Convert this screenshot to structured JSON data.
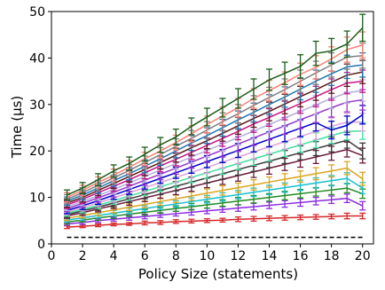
{
  "chart_data": {
    "type": "line",
    "xlabel": "Policy Size (statements)",
    "ylabel": "Time (μs)",
    "xlim": [
      0,
      20.7
    ],
    "ylim": [
      0,
      50
    ],
    "x_ticks": [
      0,
      2,
      4,
      6,
      8,
      10,
      12,
      14,
      16,
      18,
      20
    ],
    "y_ticks": [
      0,
      10,
      20,
      30,
      40,
      50
    ],
    "x": [
      1,
      2,
      3,
      4,
      5,
      6,
      7,
      8,
      9,
      10,
      11,
      12,
      13,
      14,
      15,
      16,
      17,
      18,
      19,
      20
    ],
    "error_bars": true,
    "grid": false,
    "legend": "none",
    "series": [
      {
        "color": "#1a5e1a",
        "values": [
          10.5,
          12.0,
          13.8,
          15.7,
          17.3,
          19.3,
          21.3,
          23.0,
          25.3,
          27.3,
          29.3,
          31.3,
          33.3,
          35.3,
          36.7,
          38.2,
          41.0,
          41.5,
          43.0,
          46.5
        ],
        "errors": [
          1.1,
          1.2,
          1.3,
          1.3,
          1.4,
          1.5,
          1.6,
          1.7,
          1.8,
          1.9,
          2.0,
          2.1,
          2.2,
          2.3,
          2.4,
          2.5,
          2.6,
          2.7,
          2.8,
          2.9
        ]
      },
      {
        "color": "#fa8072",
        "values": [
          10.0,
          11.5,
          13.2,
          14.8,
          16.5,
          18.3,
          20.0,
          21.8,
          23.7,
          25.7,
          27.5,
          29.3,
          31.3,
          33.0,
          34.7,
          36.5,
          38.0,
          39.8,
          41.8,
          42.8
        ],
        "errors": [
          1.0,
          1.1,
          1.2,
          1.3,
          1.4,
          1.4,
          1.5,
          1.6,
          1.7,
          1.8,
          1.9,
          2.0,
          2.1,
          2.2,
          2.3,
          2.4,
          2.5,
          2.6,
          2.7,
          2.8
        ]
      },
      {
        "color": "#808080",
        "values": [
          9.6,
          11.0,
          12.6,
          14.2,
          15.8,
          17.5,
          19.2,
          21.0,
          22.7,
          24.5,
          26.3,
          28.0,
          29.8,
          31.5,
          33.2,
          35.0,
          36.8,
          38.5,
          40.2,
          40.5
        ],
        "errors": [
          1.0,
          1.1,
          1.1,
          1.2,
          1.3,
          1.4,
          1.5,
          1.6,
          1.7,
          1.8,
          1.9,
          2.0,
          2.1,
          2.2,
          2.3,
          2.4,
          2.5,
          2.6,
          2.6,
          2.7
        ]
      },
      {
        "color": "#1f77b4",
        "values": [
          9.2,
          10.5,
          12.0,
          13.6,
          15.1,
          16.7,
          18.3,
          20.0,
          21.7,
          23.3,
          25.0,
          26.7,
          28.3,
          30.0,
          31.6,
          33.3,
          35.0,
          36.6,
          38.1,
          38.5
        ],
        "errors": [
          0.9,
          1.0,
          1.1,
          1.2,
          1.3,
          1.4,
          1.4,
          1.5,
          1.6,
          1.7,
          1.8,
          1.9,
          2.0,
          2.1,
          2.2,
          2.3,
          2.4,
          2.5,
          2.5,
          2.6
        ]
      },
      {
        "color": "#5c1a1a",
        "values": [
          8.8,
          10.0,
          11.5,
          13.0,
          14.5,
          16.0,
          17.5,
          19.1,
          20.7,
          22.2,
          23.8,
          25.4,
          27.0,
          28.5,
          30.1,
          31.7,
          33.2,
          34.8,
          36.3,
          37.0
        ],
        "errors": [
          0.9,
          1.0,
          1.1,
          1.1,
          1.2,
          1.3,
          1.4,
          1.5,
          1.6,
          1.7,
          1.7,
          1.8,
          1.9,
          2.0,
          2.1,
          2.2,
          2.3,
          2.4,
          2.4,
          2.5
        ]
      },
      {
        "color": "#c71585",
        "values": [
          8.4,
          9.6,
          11.0,
          12.4,
          13.8,
          15.3,
          16.8,
          18.2,
          19.7,
          21.2,
          22.7,
          24.2,
          25.8,
          27.2,
          28.7,
          30.2,
          31.7,
          33.2,
          34.6,
          35.0
        ],
        "errors": [
          0.8,
          0.9,
          1.0,
          1.1,
          1.2,
          1.3,
          1.3,
          1.4,
          1.5,
          1.6,
          1.7,
          1.8,
          1.8,
          1.9,
          2.0,
          2.1,
          2.2,
          2.3,
          2.3,
          2.4
        ]
      },
      {
        "color": "#b0b0d8",
        "values": [
          8.0,
          9.1,
          10.4,
          11.7,
          13.1,
          14.5,
          15.9,
          17.3,
          18.7,
          20.1,
          21.5,
          22.9,
          24.3,
          25.7,
          27.1,
          28.5,
          29.9,
          31.3,
          32.5,
          33.0
        ],
        "errors": [
          0.8,
          0.9,
          1.0,
          1.0,
          1.1,
          1.2,
          1.3,
          1.3,
          1.4,
          1.5,
          1.6,
          1.7,
          1.7,
          1.8,
          1.9,
          2.0,
          2.0,
          2.1,
          2.2,
          2.3
        ]
      },
      {
        "color": "#9932cc",
        "values": [
          7.6,
          8.7,
          9.9,
          11.1,
          12.4,
          13.7,
          15.0,
          16.3,
          17.6,
          18.9,
          20.2,
          21.5,
          22.8,
          24.1,
          25.4,
          26.7,
          28.0,
          29.3,
          30.5,
          31.0
        ],
        "errors": [
          0.7,
          0.8,
          0.9,
          1.0,
          1.1,
          1.1,
          1.2,
          1.3,
          1.3,
          1.4,
          1.5,
          1.6,
          1.6,
          1.7,
          1.8,
          1.9,
          1.9,
          2.0,
          2.1,
          2.2
        ]
      },
      {
        "color": "#0000cd",
        "values": [
          7.2,
          8.2,
          9.3,
          10.5,
          11.7,
          12.9,
          14.1,
          15.3,
          16.5,
          17.7,
          18.9,
          20.1,
          21.3,
          22.5,
          23.7,
          24.9,
          26.1,
          24.5,
          25.5,
          27.8
        ],
        "errors": [
          0.7,
          0.8,
          0.8,
          0.9,
          1.0,
          1.1,
          1.1,
          1.2,
          1.3,
          1.3,
          1.4,
          1.5,
          1.5,
          1.6,
          1.7,
          1.8,
          1.8,
          1.9,
          2.0,
          2.0
        ]
      },
      {
        "color": "#dda0dd",
        "values": [
          6.9,
          7.8,
          8.8,
          9.9,
          11.0,
          12.1,
          13.2,
          14.3,
          15.4,
          16.5,
          17.6,
          18.7,
          19.8,
          20.9,
          22.0,
          23.1,
          24.2,
          25.3,
          26.2,
          26.2
        ],
        "errors": [
          0.6,
          0.7,
          0.8,
          0.9,
          0.9,
          1.0,
          1.1,
          1.1,
          1.2,
          1.3,
          1.3,
          1.4,
          1.5,
          1.5,
          1.6,
          1.7,
          1.7,
          1.8,
          1.9,
          1.9
        ]
      },
      {
        "color": "#40e0a0",
        "values": [
          6.6,
          7.4,
          8.3,
          9.3,
          10.3,
          11.3,
          12.3,
          13.3,
          14.3,
          15.3,
          16.3,
          17.3,
          18.3,
          19.3,
          20.3,
          21.3,
          22.3,
          23.3,
          24.2,
          24.3
        ],
        "errors": [
          0.6,
          0.7,
          0.7,
          0.8,
          0.9,
          0.9,
          1.0,
          1.1,
          1.1,
          1.2,
          1.3,
          1.3,
          1.4,
          1.5,
          1.5,
          1.6,
          1.6,
          1.7,
          1.8,
          1.8
        ]
      },
      {
        "color": "#3a3a3a",
        "values": [
          6.3,
          7.1,
          7.9,
          8.8,
          9.7,
          10.6,
          11.5,
          12.4,
          13.3,
          14.2,
          15.1,
          16.0,
          16.9,
          17.8,
          18.7,
          19.6,
          20.5,
          21.4,
          22.3,
          20.0
        ],
        "errors": [
          0.6,
          0.6,
          0.7,
          0.8,
          0.8,
          0.9,
          0.9,
          1.0,
          1.1,
          1.1,
          1.2,
          1.2,
          1.3,
          1.4,
          1.4,
          1.5,
          1.5,
          1.6,
          1.7,
          1.7
        ]
      },
      {
        "color": "#6b1a3a",
        "values": [
          6.0,
          6.7,
          7.5,
          8.3,
          9.1,
          9.9,
          10.7,
          11.5,
          12.3,
          13.1,
          13.9,
          14.7,
          15.5,
          16.3,
          17.1,
          17.9,
          18.7,
          19.5,
          20.3,
          19.0
        ],
        "errors": [
          0.5,
          0.6,
          0.6,
          0.7,
          0.8,
          0.8,
          0.9,
          0.9,
          1.0,
          1.0,
          1.1,
          1.2,
          1.2,
          1.3,
          1.3,
          1.4,
          1.4,
          1.5,
          1.6,
          1.6
        ]
      },
      {
        "color": "#daa520",
        "values": [
          5.5,
          6.1,
          6.7,
          7.3,
          7.9,
          8.5,
          9.1,
          9.7,
          10.3,
          10.9,
          11.5,
          12.1,
          12.7,
          13.3,
          13.9,
          14.5,
          15.1,
          15.7,
          16.3,
          14.0
        ],
        "errors": [
          0.5,
          0.5,
          0.6,
          0.6,
          0.7,
          0.7,
          0.8,
          0.8,
          0.9,
          0.9,
          1.0,
          1.0,
          1.1,
          1.1,
          1.2,
          1.2,
          1.3,
          1.3,
          1.4,
          1.4
        ]
      },
      {
        "color": "#17becf",
        "values": [
          5.1,
          5.6,
          6.1,
          6.6,
          7.1,
          7.6,
          8.1,
          8.6,
          9.1,
          9.6,
          10.1,
          10.6,
          11.1,
          11.6,
          12.1,
          12.6,
          13.1,
          13.6,
          14.1,
          12.0
        ],
        "errors": [
          0.4,
          0.5,
          0.5,
          0.6,
          0.6,
          0.6,
          0.7,
          0.7,
          0.8,
          0.8,
          0.9,
          0.9,
          0.9,
          1.0,
          1.0,
          1.1,
          1.1,
          1.1,
          1.2,
          1.2
        ]
      },
      {
        "color": "#228b22",
        "values": [
          4.7,
          5.1,
          5.6,
          6.0,
          6.4,
          6.8,
          7.2,
          7.6,
          8.0,
          8.4,
          8.8,
          9.2,
          9.6,
          10.0,
          10.4,
          10.8,
          11.2,
          11.6,
          12.0,
          10.8
        ],
        "errors": [
          0.4,
          0.4,
          0.5,
          0.5,
          0.5,
          0.6,
          0.6,
          0.6,
          0.7,
          0.7,
          0.7,
          0.8,
          0.8,
          0.8,
          0.9,
          0.9,
          0.9,
          1.0,
          1.0,
          1.0
        ]
      },
      {
        "color": "#8a2be2",
        "values": [
          4.3,
          4.6,
          5.0,
          5.3,
          5.6,
          5.9,
          6.2,
          6.5,
          6.8,
          7.1,
          7.4,
          7.7,
          8.0,
          8.3,
          8.6,
          8.9,
          9.2,
          9.5,
          9.8,
          8.2
        ],
        "errors": [
          0.3,
          0.4,
          0.4,
          0.4,
          0.5,
          0.5,
          0.5,
          0.5,
          0.6,
          0.6,
          0.6,
          0.7,
          0.7,
          0.7,
          0.7,
          0.8,
          0.8,
          0.8,
          0.9,
          0.9
        ]
      },
      {
        "color": "#d62728",
        "values": [
          3.6,
          3.8,
          4.0,
          4.2,
          4.3,
          4.5,
          4.6,
          4.8,
          4.9,
          5.0,
          5.1,
          5.3,
          5.4,
          5.5,
          5.6,
          5.7,
          5.8,
          5.9,
          6.0,
          6.0
        ],
        "errors": [
          0.3,
          0.3,
          0.3,
          0.3,
          0.3,
          0.4,
          0.4,
          0.4,
          0.4,
          0.4,
          0.4,
          0.5,
          0.5,
          0.5,
          0.5,
          0.5,
          0.5,
          0.5,
          0.6,
          0.6
        ]
      }
    ],
    "baseline": {
      "color": "#000000",
      "style": "dashed",
      "values": [
        1.4,
        1.4,
        1.4,
        1.4,
        1.4,
        1.4,
        1.4,
        1.4,
        1.4,
        1.4,
        1.4,
        1.4,
        1.4,
        1.4,
        1.4,
        1.4,
        1.4,
        1.4,
        1.4,
        1.4
      ]
    }
  }
}
